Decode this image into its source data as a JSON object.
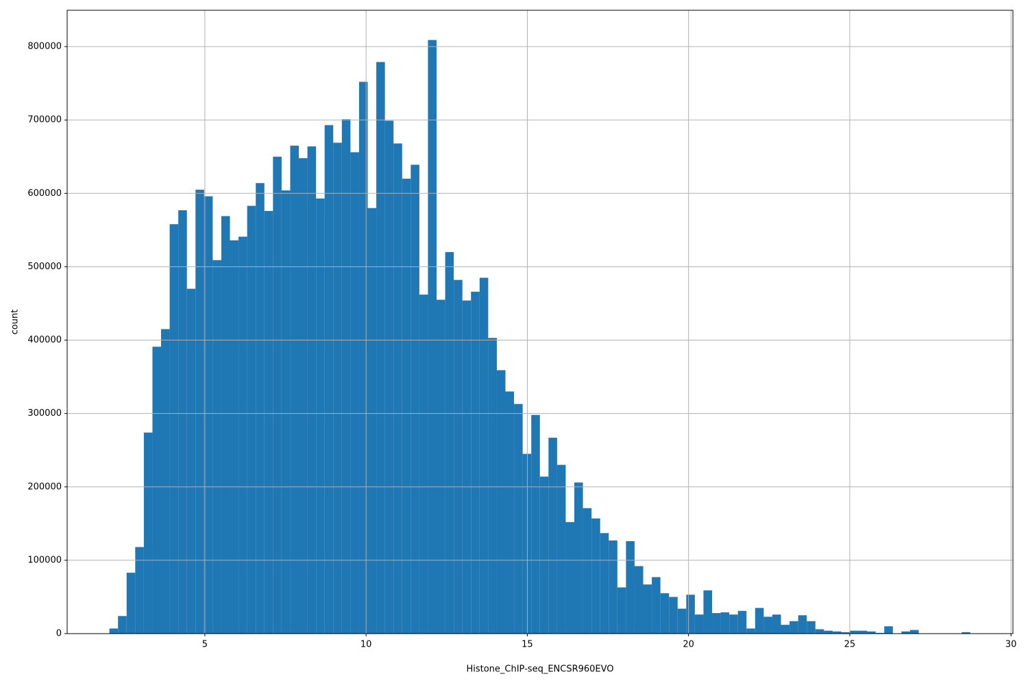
{
  "chart_data": {
    "type": "histogram",
    "xlabel": "Histone_ChIP-seq_ENCSR960EVO",
    "ylabel": "count",
    "color": "#1f77b4",
    "grid": true,
    "bins": [
      2.04,
      2.307,
      2.574,
      2.841,
      3.108,
      3.375,
      3.642,
      3.909,
      4.176,
      4.443,
      4.71,
      4.977,
      5.244,
      5.511,
      5.778,
      6.045,
      6.312,
      6.579,
      6.846,
      7.113,
      7.38,
      7.647,
      7.914,
      8.181,
      8.448,
      8.715,
      8.982,
      9.249,
      9.516,
      9.783,
      10.05,
      10.317,
      10.584,
      10.851,
      11.118,
      11.385,
      11.652,
      11.919,
      12.186,
      12.453,
      12.72,
      12.987,
      13.254,
      13.521,
      13.788,
      14.055,
      14.322,
      14.589,
      14.856,
      15.123,
      15.39,
      15.657,
      15.924,
      16.191,
      16.458,
      16.725,
      16.992,
      17.259,
      17.526,
      17.793,
      18.06,
      18.327,
      18.594,
      18.861,
      19.128,
      19.395,
      19.662,
      19.929,
      20.196,
      20.463,
      20.73,
      20.997,
      21.264,
      21.531,
      21.798,
      22.065,
      22.332,
      22.599,
      22.866,
      23.133,
      23.4,
      23.667,
      23.934,
      24.201,
      24.468,
      24.735,
      25.002,
      25.269,
      25.536,
      25.803,
      26.07,
      26.337,
      26.604,
      26.871,
      27.138,
      27.405,
      27.672,
      27.939,
      28.206,
      28.473,
      28.74
    ],
    "values": [
      7000,
      24000,
      83000,
      118000,
      274000,
      391000,
      415000,
      558000,
      577000,
      470000,
      605000,
      596000,
      509000,
      569000,
      536000,
      541000,
      583000,
      614000,
      576000,
      650000,
      604000,
      665000,
      648000,
      664000,
      593000,
      693000,
      669000,
      701000,
      656000,
      752000,
      580000,
      779000,
      699000,
      668000,
      620000,
      639000,
      462000,
      809000,
      455000,
      520000,
      482000,
      454000,
      466000,
      485000,
      403000,
      359000,
      330000,
      313000,
      245000,
      298000,
      214000,
      267000,
      230000,
      152000,
      206000,
      171000,
      157000,
      137000,
      127000,
      63000,
      126000,
      92000,
      67000,
      77000,
      55000,
      50000,
      34000,
      53000,
      26000,
      59000,
      28000,
      29000,
      26000,
      31000,
      7000,
      35000,
      23000,
      26000,
      12000,
      17000,
      25000,
      17000,
      6000,
      4000,
      3000,
      2000,
      4000,
      4000,
      3000,
      1000,
      10000,
      0,
      3000,
      5000,
      0,
      0,
      0,
      0,
      0,
      2000
    ],
    "xlim": [
      0.73,
      30.06
    ],
    "ylim": [
      0,
      849500
    ],
    "xticks": [
      5,
      10,
      15,
      20,
      25,
      30
    ],
    "yticks": [
      0,
      100000,
      200000,
      300000,
      400000,
      500000,
      600000,
      700000,
      800000
    ]
  }
}
